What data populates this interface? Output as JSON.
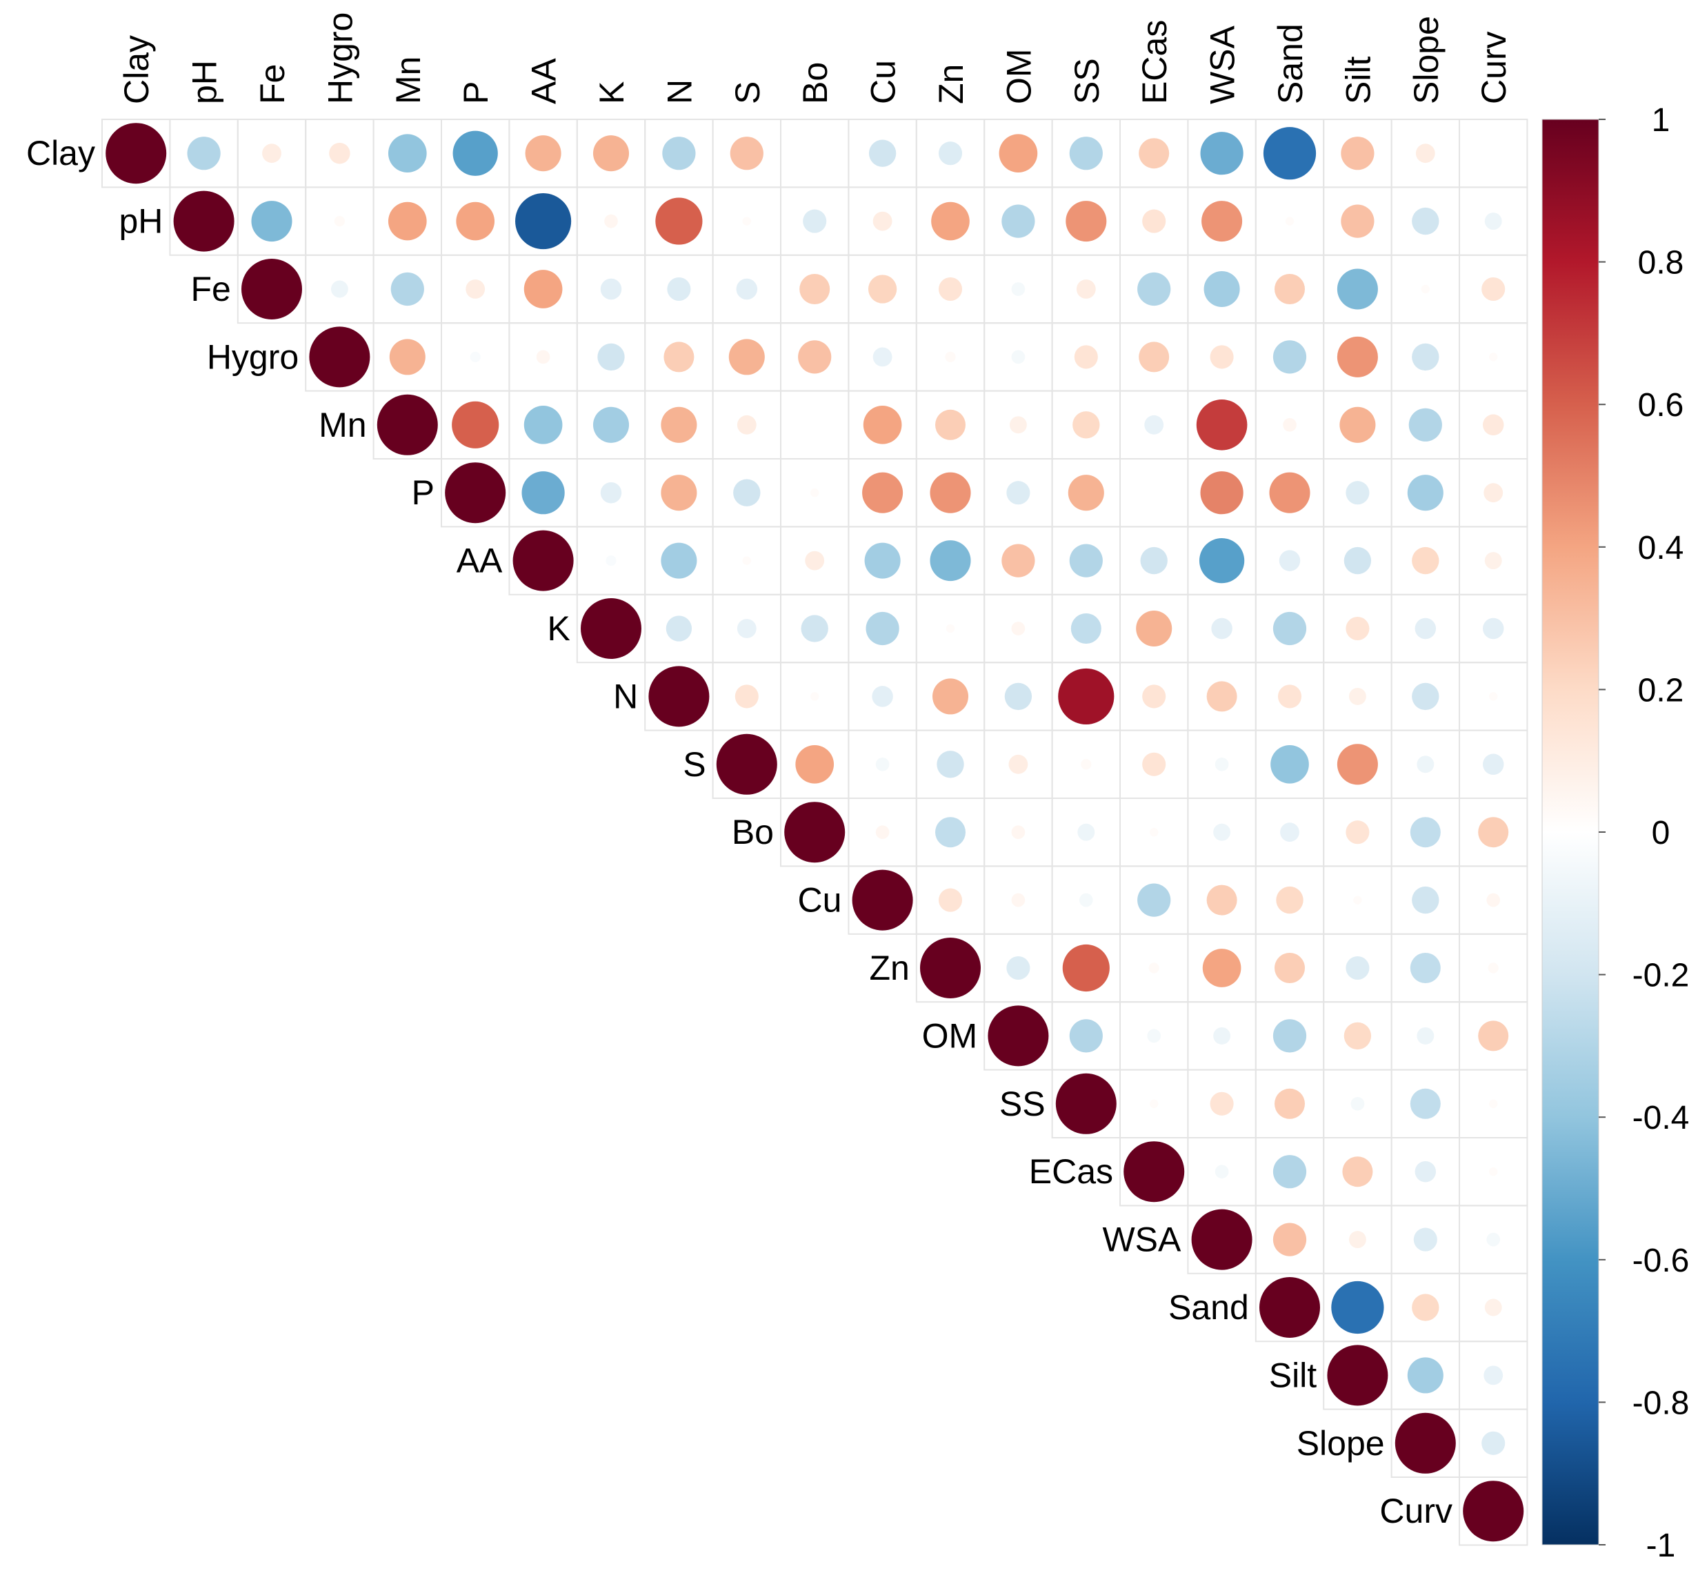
{
  "chart_data": {
    "type": "correlation-matrix",
    "layout": "upper triangle, circle glyphs (size and color encode correlation)",
    "variables": [
      "Clay",
      "pH",
      "Fe",
      "Hygro",
      "Mn",
      "P",
      "AA",
      "K",
      "N",
      "S",
      "Bo",
      "Cu",
      "Zn",
      "OM",
      "SS",
      "ECas",
      "WSA",
      "Sand",
      "Silt",
      "Slope",
      "Curv"
    ],
    "matrix_upper_rows": [
      [
        1,
        -0.3,
        0.1,
        0.12,
        -0.4,
        -0.55,
        0.35,
        0.35,
        -0.3,
        0.3,
        0,
        -0.2,
        -0.15,
        0.4,
        -0.3,
        0.25,
        -0.5,
        -0.75,
        0.3,
        0.1,
        0
      ],
      [
        1,
        -0.45,
        0.03,
        0.4,
        0.4,
        -0.85,
        0.05,
        0.6,
        0.02,
        -0.15,
        0.1,
        0.4,
        -0.3,
        0.45,
        0.15,
        0.45,
        0.02,
        0.3,
        -0.2,
        -0.08
      ],
      [
        1,
        -0.08,
        -0.3,
        0.1,
        0.4,
        -0.12,
        -0.15,
        -0.12,
        0.25,
        0.22,
        0.15,
        -0.05,
        0.1,
        -0.3,
        -0.35,
        0.25,
        -0.45,
        0.02,
        0.15
      ],
      [
        1,
        0.35,
        -0.03,
        0.05,
        -0.2,
        0.25,
        0.35,
        0.3,
        -0.1,
        0.03,
        -0.05,
        0.15,
        0.25,
        0.15,
        -0.3,
        0.45,
        -0.2,
        0.02
      ],
      [
        1,
        0.6,
        -0.4,
        -0.35,
        0.35,
        0.1,
        0,
        0.4,
        0.25,
        0.08,
        0.2,
        -0.1,
        0.7,
        0.05,
        0.35,
        -0.3,
        0.12
      ],
      [
        1,
        -0.5,
        -0.12,
        0.35,
        -0.2,
        0.02,
        0.45,
        0.45,
        -0.15,
        0.35,
        0,
        0.5,
        0.45,
        -0.15,
        -0.35,
        0.1
      ],
      [
        1,
        -0.03,
        -0.35,
        0.02,
        0.1,
        -0.35,
        -0.45,
        0.3,
        -0.3,
        -0.2,
        -0.55,
        -0.12,
        -0.2,
        0.2,
        0.08
      ],
      [
        1,
        -0.18,
        -0.1,
        -0.2,
        -0.3,
        0.02,
        0.05,
        -0.25,
        0.35,
        -0.12,
        -0.3,
        0.15,
        -0.12,
        -0.12
      ],
      [
        1,
        0.15,
        0.02,
        -0.12,
        0.35,
        -0.2,
        0.85,
        0.15,
        0.25,
        0.15,
        0.08,
        -0.2,
        0.02
      ],
      [
        1,
        0.4,
        -0.05,
        -0.2,
        0.1,
        0.03,
        0.15,
        -0.05,
        -0.4,
        0.45,
        -0.08,
        -0.12
      ],
      [
        1,
        0.05,
        -0.25,
        0.05,
        -0.08,
        0.02,
        -0.08,
        -0.1,
        0.15,
        -0.25,
        0.25
      ],
      [
        1,
        0.15,
        0.05,
        -0.05,
        -0.3,
        0.25,
        0.2,
        0.02,
        -0.2,
        0.05
      ],
      [
        1,
        -0.15,
        0.6,
        0.03,
        0.4,
        0.25,
        -0.15,
        -0.25,
        0.03
      ],
      [
        1,
        -0.3,
        -0.05,
        -0.08,
        -0.3,
        0.2,
        -0.08,
        0.25
      ],
      [
        1,
        0.02,
        0.15,
        0.25,
        -0.05,
        -0.25,
        0.02
      ],
      [
        1,
        -0.05,
        -0.3,
        0.25,
        -0.12,
        0.02
      ],
      [
        1,
        0.3,
        0.08,
        -0.15,
        -0.05
      ],
      [
        1,
        -0.75,
        0.2,
        0.08
      ],
      [
        1,
        -0.35,
        -0.1
      ],
      [
        1,
        -0.15
      ],
      [
        1
      ]
    ],
    "colorbar": {
      "range": [
        -1,
        1
      ],
      "tick_labels": [
        "1",
        "0.8",
        "0.6",
        "0.4",
        "0.2",
        "0",
        "-0.2",
        "-0.4",
        "-0.6",
        "-0.8",
        "-1"
      ],
      "tick_values": [
        1,
        0.8,
        0.6,
        0.4,
        0.2,
        0,
        -0.2,
        -0.4,
        -0.6,
        -0.8,
        -1
      ],
      "colors": [
        "#67001f",
        "#b2182b",
        "#d6604d",
        "#f4a582",
        "#fddbc7",
        "#ffffff",
        "#d1e5f0",
        "#92c5de",
        "#4393c3",
        "#2166ac",
        "#053061"
      ]
    },
    "title": "",
    "xlabel": "",
    "ylabel": ""
  }
}
